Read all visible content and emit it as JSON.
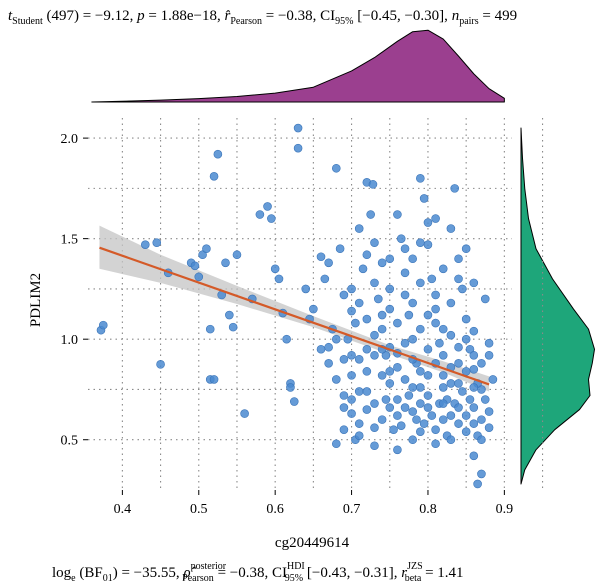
{
  "colors": {
    "points": "#4a89d0",
    "points_stroke": "#3a74b8",
    "regression_line": "#d45a28",
    "ci_band": "#c4c4c4",
    "top_density": "#9b3f8f",
    "right_density": "#1ea67a",
    "grid": "#8a8a8a"
  },
  "stats_top": {
    "t_main": "t",
    "t_sub": "Student",
    "t_rest": " (497) = −9.12, ",
    "p_sym": "p",
    "p_rest": " = 1.88e−18, ",
    "r_sym": "r̂",
    "r_sub": "Pearson",
    "r_rest": " = −0.38, CI",
    "ci_sub": "95%",
    "ci_rest": " [−0.45, −0.30], ",
    "n_sym": "n",
    "n_sub": "pairs",
    "n_rest": " = 499"
  },
  "stats_bottom": {
    "log_main": "log",
    "log_sub": "e",
    "log_rest": " (BF",
    "bf_sub": "01",
    "bf_rest": ") = −35.55, ",
    "rho_sym": "ρ̂",
    "rho_sup": "posterior",
    "rho_sub": "Pearson",
    "rho_rest": " = −0.38, CI",
    "hdi_sup": "HDI",
    "hdi_sub": "95%",
    "hdi_rest": " [−0.43, −0.31], ",
    "r_sym": "r",
    "r_sup": "JZS",
    "r_sub": "beta",
    "r_rest": " = 1.41"
  },
  "chart_data": {
    "type": "scatter",
    "xlabel": "cg20449614",
    "ylabel": "PDLIM2",
    "xlim": [
      0.355,
      0.91
    ],
    "ylim": [
      0.25,
      2.1
    ],
    "x_ticks": [
      0.4,
      0.5,
      0.6,
      0.7,
      0.8,
      0.9
    ],
    "x_tick_labels": [
      "0.4",
      "0.5",
      "0.6",
      "0.7",
      "0.8",
      "0.9"
    ],
    "y_ticks": [
      0.5,
      1.0,
      1.5,
      2.0
    ],
    "y_tick_labels": [
      "0.5",
      "1.0",
      "1.5",
      "2.0"
    ],
    "grid": true,
    "regression": {
      "x_start": 0.37,
      "y_start": 1.455,
      "x_end": 0.88,
      "y_end": 0.775,
      "ci_band": [
        {
          "x": 0.37,
          "lo": 1.35,
          "hi": 1.565
        },
        {
          "x": 0.45,
          "lo": 1.28,
          "hi": 1.42
        },
        {
          "x": 0.55,
          "lo": 1.175,
          "hi": 1.265
        },
        {
          "x": 0.65,
          "lo": 1.06,
          "hi": 1.115
        },
        {
          "x": 0.75,
          "lo": 0.925,
          "hi": 0.97
        },
        {
          "x": 0.82,
          "lo": 0.835,
          "hi": 0.89
        },
        {
          "x": 0.88,
          "lo": 0.74,
          "hi": 0.815
        }
      ]
    },
    "top_density_curve": [
      [
        0.36,
        0.0
      ],
      [
        0.4,
        0.01
      ],
      [
        0.45,
        0.025
      ],
      [
        0.5,
        0.045
      ],
      [
        0.55,
        0.075
      ],
      [
        0.6,
        0.12
      ],
      [
        0.65,
        0.2
      ],
      [
        0.7,
        0.42
      ],
      [
        0.73,
        0.6
      ],
      [
        0.76,
        0.82
      ],
      [
        0.78,
        0.95
      ],
      [
        0.8,
        0.97
      ],
      [
        0.82,
        0.85
      ],
      [
        0.84,
        0.62
      ],
      [
        0.86,
        0.38
      ],
      [
        0.88,
        0.18
      ],
      [
        0.9,
        0.05
      ]
    ],
    "right_density_curve": [
      [
        2.05,
        0.0
      ],
      [
        1.9,
        0.02
      ],
      [
        1.75,
        0.05
      ],
      [
        1.6,
        0.1
      ],
      [
        1.45,
        0.2
      ],
      [
        1.3,
        0.42
      ],
      [
        1.15,
        0.7
      ],
      [
        1.05,
        0.9
      ],
      [
        0.95,
        0.98
      ],
      [
        0.88,
        0.95
      ],
      [
        0.8,
        0.9
      ],
      [
        0.72,
        0.92
      ],
      [
        0.65,
        0.78
      ],
      [
        0.55,
        0.45
      ],
      [
        0.45,
        0.2
      ],
      [
        0.35,
        0.05
      ],
      [
        0.28,
        0.0
      ]
    ],
    "points": [
      [
        0.372,
        1.045
      ],
      [
        0.375,
        1.07
      ],
      [
        0.43,
        1.47
      ],
      [
        0.445,
        1.48
      ],
      [
        0.45,
        0.875
      ],
      [
        0.46,
        1.33
      ],
      [
        0.49,
        1.38
      ],
      [
        0.495,
        1.365
      ],
      [
        0.5,
        1.31
      ],
      [
        0.505,
        1.42
      ],
      [
        0.51,
        1.45
      ],
      [
        0.515,
        1.05
      ],
      [
        0.515,
        0.8
      ],
      [
        0.52,
        0.8
      ],
      [
        0.52,
        1.81
      ],
      [
        0.525,
        1.92
      ],
      [
        0.53,
        1.22
      ],
      [
        0.535,
        1.38
      ],
      [
        0.54,
        1.12
      ],
      [
        0.545,
        1.06
      ],
      [
        0.55,
        1.42
      ],
      [
        0.56,
        0.63
      ],
      [
        0.57,
        1.2
      ],
      [
        0.58,
        1.62
      ],
      [
        0.59,
        1.66
      ],
      [
        0.595,
        1.6
      ],
      [
        0.6,
        1.35
      ],
      [
        0.605,
        1.3
      ],
      [
        0.61,
        1.13
      ],
      [
        0.615,
        1.0
      ],
      [
        0.62,
        0.78
      ],
      [
        0.62,
        0.76
      ],
      [
        0.625,
        0.69
      ],
      [
        0.63,
        2.05
      ],
      [
        0.63,
        1.95
      ],
      [
        0.64,
        1.25
      ],
      [
        0.645,
        1.1
      ],
      [
        0.65,
        1.15
      ],
      [
        0.66,
        1.41
      ],
      [
        0.665,
        1.3
      ],
      [
        0.67,
        0.96
      ],
      [
        0.675,
        1.05
      ],
      [
        0.68,
        1.85
      ],
      [
        0.685,
        1.45
      ],
      [
        0.69,
        1.22
      ],
      [
        0.695,
        1.0
      ],
      [
        0.7,
        0.92
      ],
      [
        0.7,
        1.14
      ],
      [
        0.705,
        1.08
      ],
      [
        0.71,
        0.74
      ],
      [
        0.715,
        1.35
      ],
      [
        0.72,
        1.78
      ],
      [
        0.725,
        1.62
      ],
      [
        0.728,
        1.77
      ],
      [
        0.73,
        1.28
      ],
      [
        0.735,
        1.2
      ],
      [
        0.74,
        1.05
      ],
      [
        0.745,
        0.92
      ],
      [
        0.75,
        0.84
      ],
      [
        0.755,
        0.55
      ],
      [
        0.76,
        1.62
      ],
      [
        0.765,
        1.5
      ],
      [
        0.77,
        1.33
      ],
      [
        0.775,
        1.12
      ],
      [
        0.78,
        1.0
      ],
      [
        0.785,
        0.88
      ],
      [
        0.79,
        0.76
      ],
      [
        0.79,
        1.8
      ],
      [
        0.795,
        1.7
      ],
      [
        0.8,
        1.47
      ],
      [
        0.805,
        1.3
      ],
      [
        0.81,
        1.15
      ],
      [
        0.815,
        0.98
      ],
      [
        0.82,
        0.82
      ],
      [
        0.825,
        0.7
      ],
      [
        0.83,
        0.62
      ],
      [
        0.835,
        1.75
      ],
      [
        0.84,
        1.4
      ],
      [
        0.845,
        1.25
      ],
      [
        0.85,
        1.1
      ],
      [
        0.855,
        0.95
      ],
      [
        0.86,
        0.85
      ],
      [
        0.865,
        0.52
      ],
      [
        0.87,
        0.75
      ],
      [
        0.875,
        1.2
      ],
      [
        0.88,
        0.98
      ],
      [
        0.885,
        0.8
      ],
      [
        0.87,
        0.33
      ],
      [
        0.865,
        0.28
      ],
      [
        0.86,
        0.42
      ],
      [
        0.68,
        0.48
      ],
      [
        0.69,
        0.55
      ],
      [
        0.7,
        0.63
      ],
      [
        0.705,
        0.5
      ],
      [
        0.71,
        0.58
      ],
      [
        0.72,
        0.65
      ],
      [
        0.73,
        0.47
      ],
      [
        0.74,
        0.6
      ],
      [
        0.745,
        0.7
      ],
      [
        0.75,
        0.78
      ],
      [
        0.76,
        0.45
      ],
      [
        0.765,
        0.57
      ],
      [
        0.77,
        0.66
      ],
      [
        0.775,
        0.72
      ],
      [
        0.78,
        0.5
      ],
      [
        0.785,
        0.6
      ],
      [
        0.79,
        0.68
      ],
      [
        0.795,
        0.58
      ],
      [
        0.8,
        0.72
      ],
      [
        0.805,
        0.62
      ],
      [
        0.81,
        0.55
      ],
      [
        0.815,
        0.68
      ],
      [
        0.82,
        0.6
      ],
      [
        0.825,
        0.52
      ],
      [
        0.83,
        0.78
      ],
      [
        0.835,
        0.68
      ],
      [
        0.84,
        0.58
      ],
      [
        0.845,
        0.74
      ],
      [
        0.85,
        0.62
      ],
      [
        0.855,
        0.7
      ],
      [
        0.86,
        0.66
      ],
      [
        0.865,
        0.78
      ],
      [
        0.87,
        0.6
      ],
      [
        0.875,
        0.7
      ],
      [
        0.88,
        0.64
      ],
      [
        0.7,
        1.25
      ],
      [
        0.71,
        1.18
      ],
      [
        0.72,
        1.1
      ],
      [
        0.73,
        1.02
      ],
      [
        0.74,
        0.95
      ],
      [
        0.75,
        1.15
      ],
      [
        0.76,
        1.08
      ],
      [
        0.77,
        0.98
      ],
      [
        0.78,
        1.18
      ],
      [
        0.79,
        1.05
      ],
      [
        0.8,
        0.95
      ],
      [
        0.81,
        1.08
      ],
      [
        0.82,
        0.92
      ],
      [
        0.83,
        1.02
      ],
      [
        0.84,
        0.88
      ],
      [
        0.85,
        1.0
      ],
      [
        0.86,
        0.92
      ],
      [
        0.87,
        0.88
      ],
      [
        0.68,
        1.0
      ],
      [
        0.69,
        0.9
      ],
      [
        0.7,
        0.82
      ],
      [
        0.71,
        0.9
      ],
      [
        0.72,
        0.84
      ],
      [
        0.73,
        0.92
      ],
      [
        0.74,
        0.82
      ],
      [
        0.75,
        0.96
      ],
      [
        0.76,
        0.86
      ],
      [
        0.77,
        0.8
      ],
      [
        0.78,
        0.9
      ],
      [
        0.79,
        0.84
      ],
      [
        0.8,
        0.82
      ],
      [
        0.81,
        0.88
      ],
      [
        0.82,
        0.76
      ],
      [
        0.83,
        0.86
      ],
      [
        0.84,
        0.78
      ],
      [
        0.85,
        0.84
      ],
      [
        0.86,
        0.76
      ],
      [
        0.67,
        1.38
      ],
      [
        0.72,
        1.42
      ],
      [
        0.74,
        1.38
      ],
      [
        0.78,
        1.4
      ],
      [
        0.82,
        1.35
      ],
      [
        0.84,
        1.3
      ],
      [
        0.86,
        1.28
      ],
      [
        0.75,
        1.25
      ],
      [
        0.77,
        1.22
      ],
      [
        0.79,
        1.28
      ],
      [
        0.81,
        1.22
      ],
      [
        0.83,
        1.18
      ],
      [
        0.69,
        0.72
      ],
      [
        0.7,
        0.7
      ],
      [
        0.72,
        0.74
      ],
      [
        0.73,
        0.68
      ],
      [
        0.75,
        0.66
      ],
      [
        0.76,
        0.7
      ],
      [
        0.78,
        0.64
      ],
      [
        0.8,
        0.66
      ],
      [
        0.82,
        0.68
      ],
      [
        0.84,
        0.66
      ],
      [
        0.86,
        0.58
      ],
      [
        0.88,
        0.56
      ],
      [
        0.66,
        0.95
      ],
      [
        0.67,
        0.88
      ],
      [
        0.68,
        0.8
      ],
      [
        0.69,
        0.66
      ],
      [
        0.71,
        0.52
      ],
      [
        0.73,
        0.56
      ],
      [
        0.76,
        0.62
      ],
      [
        0.79,
        0.54
      ],
      [
        0.81,
        0.48
      ],
      [
        0.83,
        0.5
      ],
      [
        0.85,
        0.54
      ],
      [
        0.87,
        0.5
      ],
      [
        0.72,
        0.95
      ],
      [
        0.74,
        1.12
      ],
      [
        0.76,
        0.93
      ],
      [
        0.78,
        0.76
      ],
      [
        0.8,
        1.12
      ],
      [
        0.82,
        1.05
      ],
      [
        0.84,
        0.96
      ],
      [
        0.86,
        1.04
      ],
      [
        0.88,
        0.92
      ],
      [
        0.77,
        1.45
      ],
      [
        0.8,
        1.58
      ],
      [
        0.83,
        1.55
      ],
      [
        0.71,
        1.55
      ],
      [
        0.73,
        1.48
      ],
      [
        0.75,
        1.4
      ],
      [
        0.79,
        1.48
      ],
      [
        0.81,
        1.6
      ],
      [
        0.85,
        1.45
      ]
    ]
  }
}
